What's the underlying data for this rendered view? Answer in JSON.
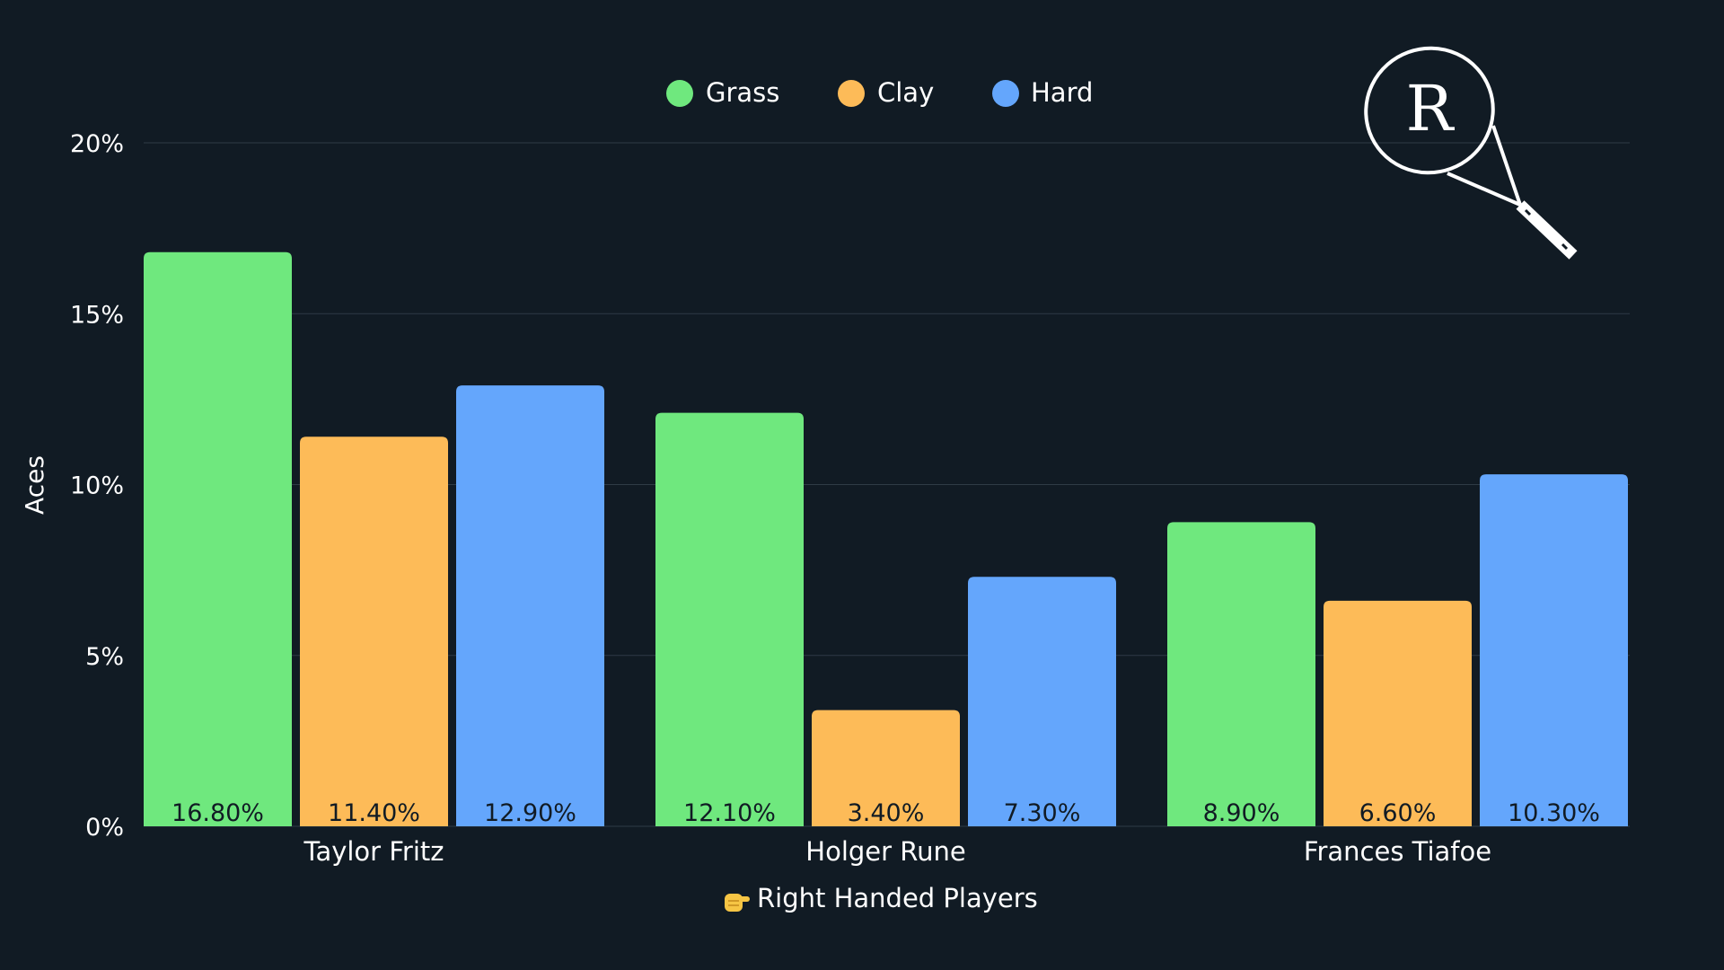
{
  "chart_data": {
    "type": "bar",
    "categories": [
      "Taylor Fritz",
      "Holger Rune",
      "Frances Tiafoe"
    ],
    "series": [
      {
        "name": "Grass",
        "values": [
          16.8,
          12.1,
          8.9
        ],
        "color": "#6fe87e",
        "labels": [
          "16.80%",
          "12.10%",
          "8.90%"
        ]
      },
      {
        "name": "Clay",
        "values": [
          11.4,
          3.4,
          6.6
        ],
        "color": "#fdbb58",
        "labels": [
          "11.40%",
          "3.40%",
          "6.60%"
        ]
      },
      {
        "name": "Hard",
        "values": [
          12.9,
          7.3,
          10.3
        ],
        "color": "#64a6fc",
        "labels": [
          "12.90%",
          "7.30%",
          "10.30%"
        ]
      }
    ],
    "ylabel": "Aces",
    "xlabel": "Right Handed Players",
    "xlabel_icon": "pointing-hand-icon",
    "ylim": [
      0,
      20
    ],
    "yticks": [
      0,
      5,
      10,
      15,
      20
    ],
    "ytick_labels": [
      "0%",
      "5%",
      "10%",
      "15%",
      "20%"
    ],
    "grid": true,
    "legend_position": "top-center",
    "logo_letter": "R"
  },
  "colors": {
    "background": "#111b24",
    "grid": "#2f3b46",
    "text": "#ffffff"
  }
}
